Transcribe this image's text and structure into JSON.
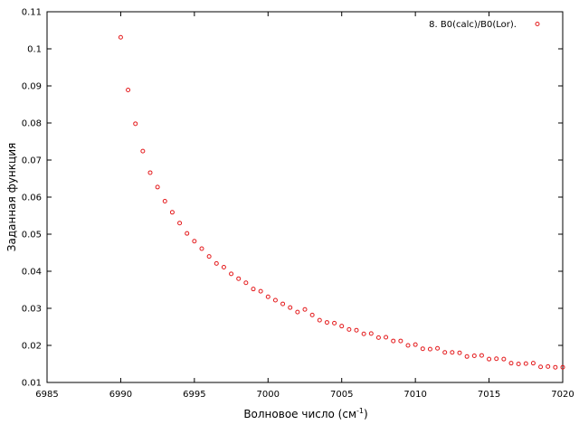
{
  "chart_data": {
    "type": "scatter",
    "title": "",
    "xlabel": "Волновое число (см",
    "xlabel_sup": "-1",
    "xlabel_tail": ")",
    "ylabel": "Заданная функция",
    "xlim": [
      6985,
      7020
    ],
    "ylim": [
      0.01,
      0.11
    ],
    "x_ticks": [
      6985,
      6990,
      6995,
      7000,
      7005,
      7010,
      7015,
      7020
    ],
    "y_ticks": [
      0.01,
      0.02,
      0.03,
      0.04,
      0.05,
      0.06,
      0.07,
      0.08,
      0.09,
      0.1,
      0.11
    ],
    "x_tick_labels": [
      "6985",
      "6990",
      "6995",
      "7000",
      "7005",
      "7010",
      "7015",
      "7020"
    ],
    "y_tick_labels": [
      "0.01",
      "0.02",
      "0.03",
      "0.04",
      "0.05",
      "0.06",
      "0.07",
      "0.08",
      "0.09",
      "0.1",
      "0.11"
    ],
    "grid": false,
    "legend_position": "top-right",
    "series": [
      {
        "name": "8. B0(calc)/B0(Lor).",
        "color": "#e41a1c",
        "marker": "open-circle",
        "points": [
          [
            6990.0,
            0.1031
          ],
          [
            6990.5,
            0.0889
          ],
          [
            6991.0,
            0.0798
          ],
          [
            6991.5,
            0.0724
          ],
          [
            6992.0,
            0.0666
          ],
          [
            6992.5,
            0.0627
          ],
          [
            6993.0,
            0.0589
          ],
          [
            6993.5,
            0.0559
          ],
          [
            6994.0,
            0.053
          ],
          [
            6994.5,
            0.0502
          ],
          [
            6995.0,
            0.0481
          ],
          [
            6995.5,
            0.0461
          ],
          [
            6996.0,
            0.044
          ],
          [
            6996.5,
            0.0421
          ],
          [
            6997.0,
            0.0411
          ],
          [
            6997.5,
            0.0393
          ],
          [
            6998.0,
            0.038
          ],
          [
            6998.5,
            0.0369
          ],
          [
            6999.0,
            0.0352
          ],
          [
            6999.5,
            0.0346
          ],
          [
            7000.0,
            0.0331
          ],
          [
            7000.5,
            0.0322
          ],
          [
            7001.0,
            0.0312
          ],
          [
            7001.5,
            0.0302
          ],
          [
            7002.0,
            0.029
          ],
          [
            7002.5,
            0.0297
          ],
          [
            7003.0,
            0.0282
          ],
          [
            7003.5,
            0.0268
          ],
          [
            7004.0,
            0.0262
          ],
          [
            7004.5,
            0.026
          ],
          [
            7005.0,
            0.0252
          ],
          [
            7005.5,
            0.0243
          ],
          [
            7006.0,
            0.0241
          ],
          [
            7006.5,
            0.0231
          ],
          [
            7007.0,
            0.0232
          ],
          [
            7007.5,
            0.0221
          ],
          [
            7008.0,
            0.0222
          ],
          [
            7008.5,
            0.0212
          ],
          [
            7009.0,
            0.0212
          ],
          [
            7009.5,
            0.02
          ],
          [
            7010.0,
            0.0202
          ],
          [
            7010.5,
            0.0191
          ],
          [
            7011.0,
            0.019
          ],
          [
            7011.5,
            0.0192
          ],
          [
            7012.0,
            0.0181
          ],
          [
            7012.5,
            0.0181
          ],
          [
            7013.0,
            0.018
          ],
          [
            7013.5,
            0.017
          ],
          [
            7014.0,
            0.0172
          ],
          [
            7014.5,
            0.0173
          ],
          [
            7015.0,
            0.0163
          ],
          [
            7015.5,
            0.0164
          ],
          [
            7016.0,
            0.0163
          ],
          [
            7016.5,
            0.0152
          ],
          [
            7017.0,
            0.015
          ],
          [
            7017.5,
            0.0151
          ],
          [
            7018.0,
            0.0152
          ],
          [
            7018.5,
            0.0142
          ],
          [
            7019.0,
            0.0143
          ],
          [
            7019.5,
            0.0141
          ],
          [
            7020.0,
            0.0141
          ]
        ]
      }
    ]
  }
}
